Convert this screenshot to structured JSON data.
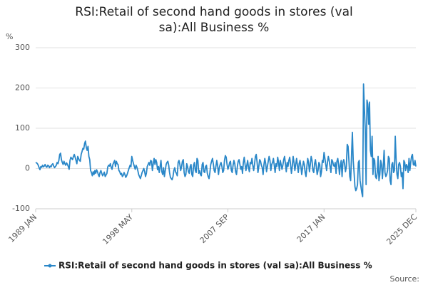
{
  "chart_data": {
    "type": "line",
    "title": "RSI:Retail of second hand goods in stores (val sa):All Business %",
    "y_label": "%",
    "source": "Source:",
    "categories": [
      "1989 JAN",
      null,
      null,
      null,
      null,
      null,
      null,
      null,
      null,
      null,
      null,
      null,
      null,
      null,
      null,
      null,
      null,
      null,
      null,
      null,
      null,
      null,
      null,
      null,
      null,
      null,
      null,
      null,
      null,
      null,
      null,
      null,
      null,
      null,
      null,
      null,
      null,
      null,
      null,
      null,
      null,
      null,
      null,
      null,
      null,
      null,
      null,
      null,
      null,
      null,
      null,
      null,
      null,
      null,
      null,
      null,
      null,
      null,
      null,
      null,
      null,
      null,
      null,
      null,
      null,
      null,
      null,
      null,
      null,
      null,
      null,
      null,
      null,
      null,
      null,
      null,
      null,
      null,
      null,
      null,
      null,
      null,
      null,
      null,
      null,
      null,
      null,
      null,
      null,
      null,
      null,
      null,
      null,
      null,
      null,
      null,
      null,
      null,
      null,
      null,
      null,
      null,
      null,
      null,
      null,
      null,
      null,
      null,
      null,
      null,
      null,
      null,
      "1998 MAY",
      null,
      null,
      null,
      null,
      null,
      null,
      null,
      null,
      null,
      null,
      null,
      null,
      null,
      null,
      null,
      null,
      null,
      null,
      null,
      null,
      null,
      null,
      null,
      null,
      null,
      null,
      null,
      null,
      null,
      null,
      null,
      null,
      null,
      null,
      null,
      null,
      null,
      null,
      null,
      null,
      null,
      null,
      null,
      null,
      null,
      null,
      null,
      null,
      null,
      null,
      null,
      null,
      null,
      null,
      null,
      null,
      null,
      null,
      null,
      null,
      null,
      null,
      null,
      null,
      null,
      null,
      null,
      null,
      null,
      null,
      null,
      null,
      null,
      null,
      null,
      null,
      null,
      null,
      null,
      null,
      null,
      null,
      null,
      null,
      null,
      null,
      null,
      null,
      null,
      null,
      null,
      null,
      null,
      null,
      null,
      null,
      null,
      null,
      null,
      null,
      null,
      null,
      null,
      null,
      null,
      null,
      null,
      null,
      null,
      null,
      null,
      "2007 SEP",
      null,
      null,
      null,
      null,
      null,
      null,
      null,
      null,
      null,
      null,
      null,
      null,
      null,
      null,
      null,
      null,
      null,
      null,
      null,
      null,
      null,
      null,
      null,
      null,
      null,
      null,
      null,
      null,
      null,
      null,
      null,
      null,
      null,
      null,
      null,
      null,
      null,
      null,
      null,
      null,
      null,
      null,
      null,
      null,
      null,
      null,
      null,
      null,
      null,
      null,
      null,
      null,
      null,
      null,
      null,
      null,
      null,
      null,
      null,
      null,
      null,
      null,
      null,
      null,
      null,
      null,
      null,
      null,
      null,
      null,
      null,
      null,
      null,
      null,
      null,
      null,
      null,
      null,
      null,
      null,
      null,
      null,
      null,
      null,
      null,
      null,
      null,
      null,
      null,
      null,
      null,
      null,
      null,
      null,
      null,
      null,
      null,
      null,
      null,
      null,
      null,
      null,
      null,
      null,
      null,
      null,
      null,
      null,
      null,
      null,
      null,
      "2017 JAN",
      null,
      null,
      null,
      null,
      null,
      null,
      null,
      null,
      null,
      null,
      null,
      null,
      null,
      null,
      null,
      null,
      null,
      null,
      null,
      null,
      null,
      null,
      null,
      null,
      null,
      null,
      null,
      null,
      null,
      null,
      null,
      null,
      null,
      null,
      null,
      null,
      null,
      null,
      null,
      null,
      null,
      null,
      null,
      null,
      null,
      null,
      null,
      null,
      null,
      null,
      null,
      null,
      null,
      null,
      null,
      null,
      null,
      null,
      null,
      null,
      null,
      null,
      null,
      null,
      null,
      null,
      null,
      null,
      null,
      null,
      null,
      null,
      null,
      null,
      null,
      null,
      null,
      null,
      null,
      null,
      null,
      null,
      null,
      null,
      null,
      null,
      null,
      null,
      null,
      null,
      null,
      null,
      null,
      null,
      null,
      null,
      null,
      null,
      null,
      null,
      null,
      null,
      null,
      null,
      null,
      null,
      "2025 DEC"
    ],
    "series": [
      {
        "name": "RSI:Retail of second hand goods in stores (val sa):All Business %",
        "color": "#2a87c8",
        "values": [
          15,
          14,
          12,
          8,
          2,
          -3,
          5,
          3,
          8,
          4,
          6,
          10,
          5,
          3,
          8,
          7,
          2,
          6,
          4,
          10,
          12,
          6,
          2,
          5,
          8,
          15,
          12,
          20,
          35,
          38,
          22,
          15,
          10,
          18,
          12,
          8,
          14,
          10,
          5,
          -2,
          20,
          28,
          25,
          22,
          30,
          35,
          28,
          20,
          12,
          30,
          25,
          20,
          18,
          35,
          42,
          50,
          48,
          62,
          68,
          52,
          45,
          55,
          30,
          22,
          -5,
          -10,
          -18,
          -8,
          -15,
          -5,
          -12,
          -3,
          -8,
          -15,
          -20,
          -10,
          -5,
          -12,
          -18,
          -14,
          -9,
          -20,
          -16,
          -12,
          4,
          8,
          6,
          12,
          3,
          -2,
          10,
          15,
          20,
          5,
          18,
          12,
          10,
          -5,
          -8,
          -15,
          -12,
          -20,
          -17,
          -10,
          -15,
          -22,
          -18,
          -12,
          -5,
          2,
          8,
          4,
          30,
          20,
          12,
          5,
          -2,
          8,
          3,
          -5,
          -15,
          -20,
          -25,
          -18,
          -10,
          -5,
          0,
          -8,
          -20,
          -12,
          5,
          10,
          15,
          8,
          20,
          18,
          -5,
          12,
          25,
          10,
          22,
          15,
          -3,
          5,
          -10,
          5,
          20,
          -8,
          -15,
          2,
          -20,
          -5,
          10,
          15,
          18,
          8,
          -10,
          -22,
          -25,
          -28,
          -20,
          -5,
          2,
          -8,
          -12,
          -18,
          15,
          20,
          10,
          -5,
          5,
          18,
          22,
          -10,
          -20,
          -15,
          12,
          5,
          -8,
          -12,
          5,
          10,
          -15,
          -20,
          8,
          15,
          -5,
          -10,
          25,
          20,
          -12,
          -5,
          -15,
          -18,
          10,
          15,
          -8,
          -10,
          5,
          8,
          -12,
          -20,
          -25,
          -10,
          10,
          18,
          25,
          12,
          -5,
          -10,
          5,
          20,
          8,
          -15,
          2,
          10,
          15,
          5,
          -10,
          -5,
          20,
          32,
          28,
          10,
          -2,
          5,
          15,
          18,
          -5,
          -10,
          8,
          20,
          12,
          -8,
          -15,
          5,
          18,
          22,
          10,
          -2,
          5,
          -12,
          15,
          28,
          10,
          -5,
          8,
          20,
          2,
          -8,
          15,
          12,
          25,
          8,
          -5,
          10,
          30,
          35,
          15,
          -10,
          5,
          22,
          18,
          8,
          2,
          -15,
          10,
          25,
          12,
          -8,
          5,
          18,
          30,
          20,
          -5,
          10,
          15,
          25,
          8,
          -10,
          12,
          5,
          28,
          15,
          -5,
          20,
          10,
          -2,
          8,
          22,
          30,
          12,
          -8,
          15,
          5,
          20,
          28,
          10,
          -12,
          5,
          30,
          15,
          -5,
          10,
          25,
          8,
          -10,
          12,
          20,
          5,
          -15,
          2,
          18,
          10,
          -10,
          -20,
          5,
          25,
          15,
          -8,
          10,
          30,
          20,
          -5,
          -10,
          12,
          22,
          5,
          -15,
          -5,
          15,
          10,
          -20,
          -8,
          20,
          15,
          40,
          25,
          10,
          -5,
          15,
          30,
          20,
          5,
          -10,
          22,
          18,
          8,
          5,
          15,
          -12,
          18,
          25,
          10,
          -15,
          8,
          20,
          -20,
          15,
          22,
          10,
          -8,
          5,
          60,
          55,
          20,
          -20,
          -30,
          30,
          90,
          20,
          -10,
          -45,
          -55,
          -50,
          -40,
          15,
          20,
          -30,
          -45,
          -60,
          -70,
          210,
          150,
          100,
          -40,
          170,
          160,
          110,
          165,
          45,
          30,
          80,
          -15,
          25,
          20,
          -20,
          -25,
          -10,
          30,
          -30,
          -15,
          20,
          10,
          -25,
          5,
          45,
          -10,
          -20,
          -15,
          -5,
          30,
          25,
          -30,
          -40,
          10,
          15,
          -10,
          -5,
          80,
          20,
          -15,
          -25,
          10,
          15,
          5,
          -20,
          -10,
          -50,
          20,
          15,
          -5,
          10,
          5,
          -10,
          25,
          -5,
          15,
          30,
          35,
          10,
          8,
          20,
          5
        ]
      }
    ],
    "ylim": [
      -100,
      300
    ],
    "yticks": [
      -100,
      0,
      100,
      200,
      300
    ],
    "grid": true,
    "legend": "bottom"
  }
}
